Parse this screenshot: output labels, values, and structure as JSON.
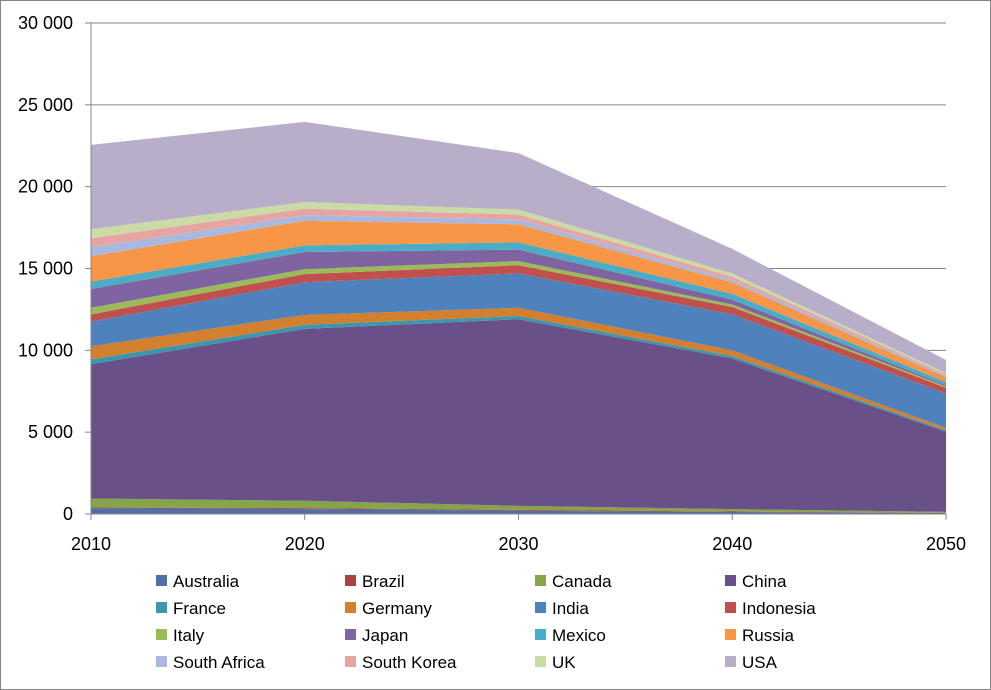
{
  "chart_data": {
    "type": "area",
    "stacked": true,
    "x": [
      2010,
      2020,
      2030,
      2040,
      2050
    ],
    "x_tick_labels": [
      "2010",
      "2020",
      "2030",
      "2040",
      "2050"
    ],
    "ylim": [
      0,
      30000
    ],
    "y_tick_values": [
      0,
      5000,
      10000,
      15000,
      20000,
      25000,
      30000
    ],
    "y_tick_labels": [
      "0",
      "5 000",
      "10 000",
      "15 000",
      "20 000",
      "25 000",
      "30 000"
    ],
    "grid": true,
    "legend_position": "bottom",
    "series": [
      {
        "name": "Australia",
        "color": "#4F6FA8",
        "values": [
          350,
          300,
          200,
          120,
          60
        ]
      },
      {
        "name": "Brazil",
        "color": "#A8423F",
        "values": [
          50,
          60,
          50,
          30,
          10
        ]
      },
      {
        "name": "Canada",
        "color": "#86A44A",
        "values": [
          550,
          450,
          250,
          150,
          60
        ]
      },
      {
        "name": "China",
        "color": "#6A5088",
        "values": [
          8200,
          10500,
          11400,
          9200,
          4900
        ]
      },
      {
        "name": "France",
        "color": "#3C96AC",
        "values": [
          300,
          250,
          200,
          150,
          80
        ]
      },
      {
        "name": "Germany",
        "color": "#D2802E",
        "values": [
          800,
          600,
          500,
          350,
          150
        ]
      },
      {
        "name": "India",
        "color": "#4F81BD",
        "values": [
          1500,
          2000,
          2100,
          2200,
          2100
        ]
      },
      {
        "name": "Indonesia",
        "color": "#C0504D",
        "values": [
          450,
          500,
          500,
          450,
          350
        ]
      },
      {
        "name": "Italy",
        "color": "#9BBB59",
        "values": [
          400,
          300,
          250,
          150,
          80
        ]
      },
      {
        "name": "Japan",
        "color": "#8064A2",
        "values": [
          1150,
          1050,
          700,
          300,
          80
        ]
      },
      {
        "name": "Mexico",
        "color": "#4BACC6",
        "values": [
          450,
          400,
          450,
          350,
          200
        ]
      },
      {
        "name": "Russia",
        "color": "#F79646",
        "values": [
          1550,
          1500,
          1100,
          700,
          300
        ]
      },
      {
        "name": "South Africa",
        "color": "#A9B8DF",
        "values": [
          550,
          350,
          300,
          150,
          80
        ]
      },
      {
        "name": "South Korea",
        "color": "#E6A5A3",
        "values": [
          550,
          400,
          300,
          200,
          80
        ]
      },
      {
        "name": "UK",
        "color": "#CADBA6",
        "values": [
          550,
          400,
          300,
          200,
          80
        ]
      },
      {
        "name": "USA",
        "color": "#B8AEC9",
        "values": [
          5150,
          4900,
          3450,
          1500,
          800
        ]
      }
    ]
  }
}
